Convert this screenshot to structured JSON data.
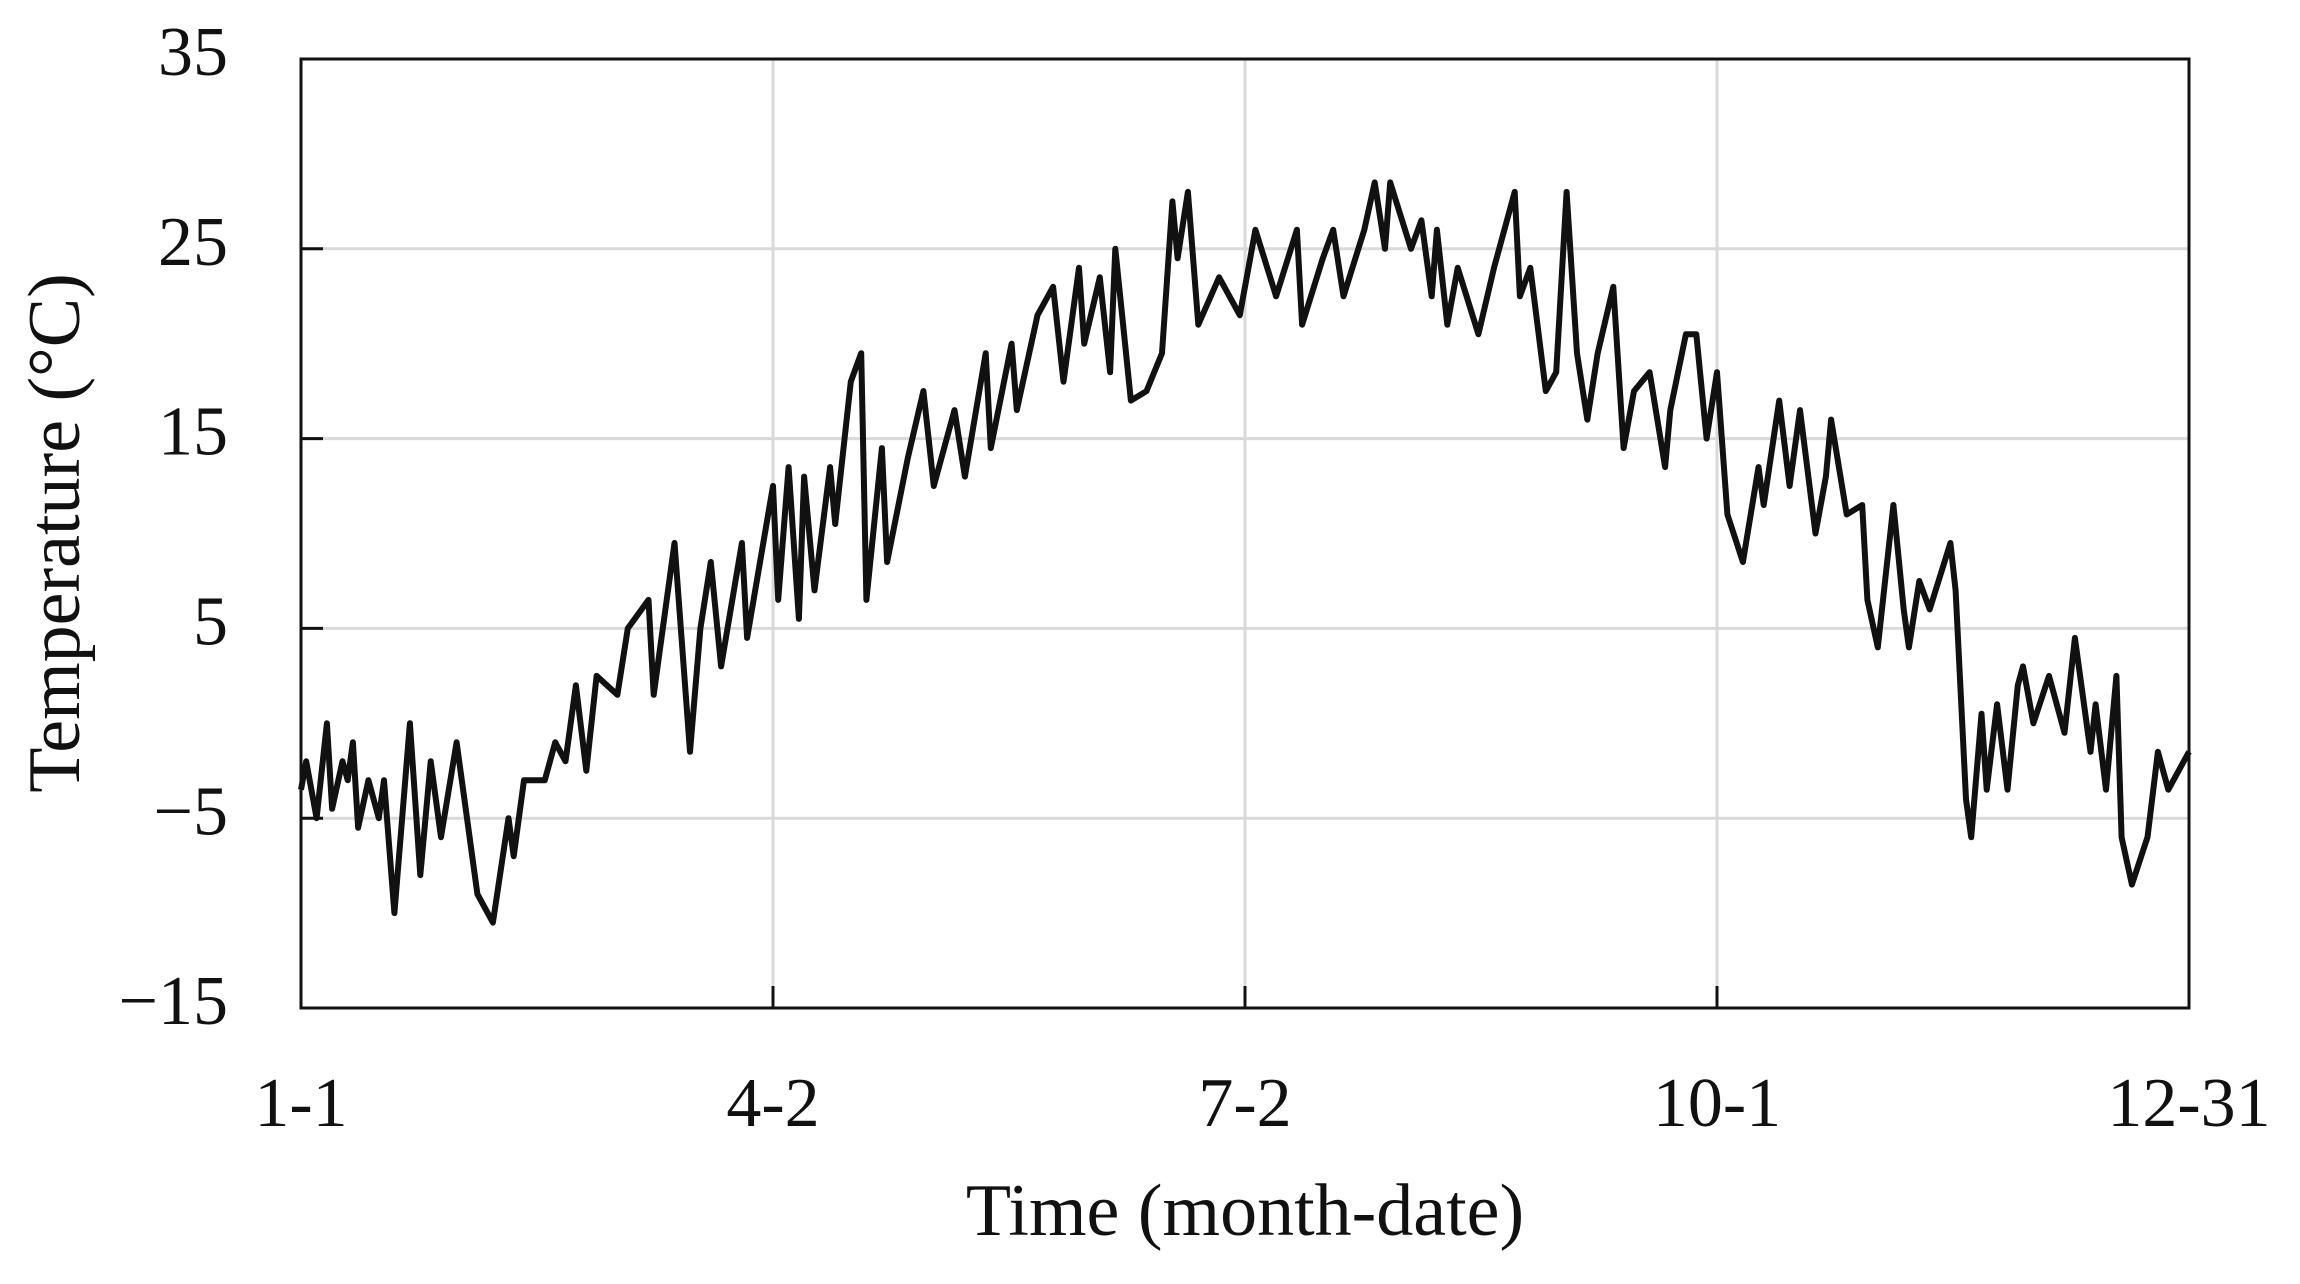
{
  "chart_data": {
    "type": "line",
    "xlabel": "Time  (month-date)",
    "ylabel": "Temperature (°C)",
    "xlim": [
      1,
      365
    ],
    "xticks": [
      {
        "value": 1,
        "label": "1-1"
      },
      {
        "value": 92,
        "label": "4-2"
      },
      {
        "value": 183,
        "label": "7-2"
      },
      {
        "value": 274,
        "label": "10-1"
      },
      {
        "value": 365,
        "label": "12-31"
      }
    ],
    "ylim": [
      -15,
      35
    ],
    "yticks": [
      {
        "value": -15,
        "label": "−15"
      },
      {
        "value": -5,
        "label": "−5"
      },
      5,
      15,
      25,
      35
    ],
    "grid": true,
    "series": [
      {
        "color": "#111111",
        "x": [
          1,
          2,
          4,
          6,
          7,
          9,
          10,
          11,
          12,
          14,
          16,
          17,
          19,
          22,
          24,
          26,
          28,
          31,
          35,
          38,
          41,
          42,
          44,
          48,
          50,
          52,
          54,
          56,
          58,
          62,
          64,
          68,
          69,
          73,
          76,
          78,
          80,
          82,
          86,
          87,
          92,
          93,
          95,
          97,
          98,
          100,
          103,
          104,
          107,
          109,
          110,
          113,
          114,
          118,
          121,
          123,
          127,
          129,
          133,
          134,
          138,
          139,
          143,
          146,
          148,
          151,
          152,
          155,
          157,
          158,
          161,
          164,
          167,
          169,
          170,
          172,
          174,
          178,
          182,
          185,
          189,
          193,
          194,
          198,
          200,
          202,
          206,
          208,
          210,
          211,
          215,
          217,
          219,
          220,
          222,
          224,
          228,
          231,
          235,
          236,
          238,
          241,
          243,
          245,
          247,
          249,
          251,
          254,
          256,
          258,
          261,
          264,
          265,
          268,
          270,
          272,
          274,
          276,
          279,
          282,
          283,
          286,
          288,
          290,
          293,
          295,
          296,
          299,
          302,
          303,
          305,
          308,
          310,
          311,
          313,
          315,
          319,
          320,
          322,
          323,
          325,
          326,
          328,
          330,
          332,
          333,
          335,
          338,
          341,
          343,
          346,
          347,
          349,
          351,
          352,
          354,
          357,
          359,
          361,
          364,
          365
        ],
        "values": [
          -3.5,
          -2,
          -5,
          0,
          -4.5,
          -2,
          -3,
          -1,
          -5.5,
          -3,
          -5,
          -3,
          -10,
          0,
          -8,
          -2,
          -6,
          -1,
          -9,
          -10.5,
          -5,
          -7,
          -3,
          -3,
          -1,
          -2,
          2,
          -2.5,
          2.5,
          1.5,
          5,
          6.5,
          1.5,
          9.5,
          -1.5,
          5,
          8.5,
          3,
          9.5,
          4.5,
          12.5,
          6.5,
          13.5,
          5.5,
          13,
          7,
          13.5,
          10.5,
          18,
          19.5,
          6.5,
          14.5,
          8.5,
          14,
          17.5,
          12.5,
          16.5,
          13,
          19.5,
          14.5,
          20,
          16.5,
          21.5,
          23,
          18,
          24,
          20,
          23.5,
          18.5,
          25,
          17,
          17.5,
          19.5,
          27.5,
          24.5,
          28,
          21,
          23.5,
          21.5,
          26,
          22.5,
          26,
          21,
          24.5,
          26,
          22.5,
          26,
          28.5,
          25,
          28.5,
          25,
          26.5,
          22.5,
          26,
          21,
          24,
          20.5,
          24,
          28,
          22.5,
          24,
          17.5,
          18.5,
          28,
          19.5,
          16,
          19.5,
          23,
          14.5,
          17.5,
          18.5,
          13.5,
          16.5,
          20.5,
          20.5,
          15,
          18.5,
          11,
          8.5,
          13.5,
          11.5,
          17,
          12.5,
          16.5,
          10,
          13,
          16,
          11,
          11.5,
          6.5,
          4,
          11.5,
          6,
          4,
          7.5,
          6,
          9.5,
          7,
          -4,
          -6,
          0.5,
          -3.5,
          1,
          -3.5,
          2,
          3,
          0,
          2.5,
          -0.5,
          4.5,
          -1.5,
          1,
          -3.5,
          2.5,
          -6,
          -8.5,
          -6,
          -1.5,
          -3.5,
          -2,
          -1.5
        ]
      }
    ]
  }
}
